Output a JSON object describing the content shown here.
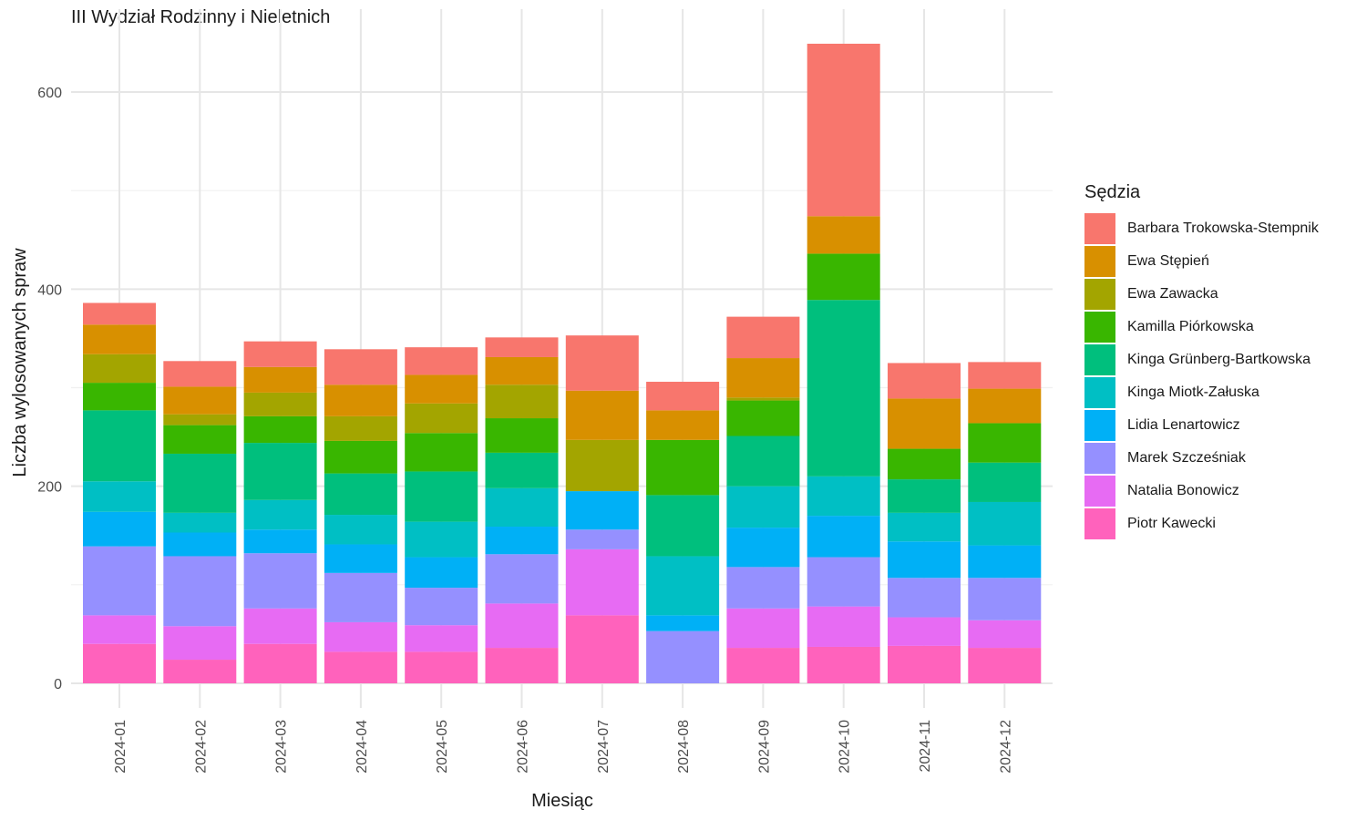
{
  "chart_data": {
    "type": "bar",
    "stacked": true,
    "title": "III Wydział Rodzinny i Nieletnich",
    "xlabel": "Miesiąc",
    "ylabel": "Liczba wylosowanych spraw",
    "ylim": [
      0,
      650
    ],
    "yticks": [
      0,
      200,
      400,
      600
    ],
    "grid": true,
    "legend_title": "Sędzia",
    "legend_position": "right",
    "categories": [
      "2024-01",
      "2024-02",
      "2024-03",
      "2024-04",
      "2024-05",
      "2024-06",
      "2024-07",
      "2024-08",
      "2024-09",
      "2024-10",
      "2024-11",
      "2024-12"
    ],
    "series": [
      {
        "name": "Barbara Trokowska-Stempnik",
        "color": "#F8766D",
        "values": [
          22,
          26,
          26,
          36,
          28,
          20,
          56,
          29,
          42,
          175,
          36,
          27
        ]
      },
      {
        "name": "Ewa Stępień",
        "color": "#D89000",
        "values": [
          30,
          28,
          26,
          32,
          29,
          28,
          50,
          30,
          40,
          38,
          51,
          35
        ]
      },
      {
        "name": "Ewa Zawacka",
        "color": "#A3A500",
        "values": [
          29,
          11,
          24,
          25,
          30,
          34,
          52,
          0,
          3,
          0,
          0,
          0
        ]
      },
      {
        "name": "Kamilla Piórkowska",
        "color": "#39B600",
        "values": [
          28,
          29,
          27,
          33,
          39,
          35,
          0,
          56,
          36,
          47,
          31,
          40
        ]
      },
      {
        "name": "Kinga Grünberg-Bartkowska",
        "color": "#00BF7D",
        "values": [
          72,
          60,
          58,
          42,
          51,
          36,
          0,
          62,
          51,
          179,
          34,
          40
        ]
      },
      {
        "name": "Kinga Miotk-Załuska",
        "color": "#00BFC4",
        "values": [
          31,
          20,
          30,
          30,
          36,
          39,
          0,
          60,
          42,
          40,
          29,
          44
        ]
      },
      {
        "name": "Lidia Lenartowicz",
        "color": "#00B0F6",
        "values": [
          35,
          24,
          24,
          29,
          31,
          28,
          39,
          16,
          40,
          42,
          37,
          33
        ]
      },
      {
        "name": "Marek Szcześniak",
        "color": "#9590FF",
        "values": [
          70,
          71,
          56,
          50,
          38,
          50,
          20,
          53,
          42,
          50,
          40,
          43
        ]
      },
      {
        "name": "Natalia Bonowicz",
        "color": "#E76BF3",
        "values": [
          29,
          34,
          36,
          30,
          27,
          45,
          67,
          0,
          40,
          41,
          29,
          28
        ]
      },
      {
        "name": "Piotr Kawecki",
        "color": "#FF62BC",
        "values": [
          40,
          24,
          40,
          32,
          32,
          36,
          69,
          0,
          36,
          37,
          38,
          36
        ]
      }
    ]
  }
}
